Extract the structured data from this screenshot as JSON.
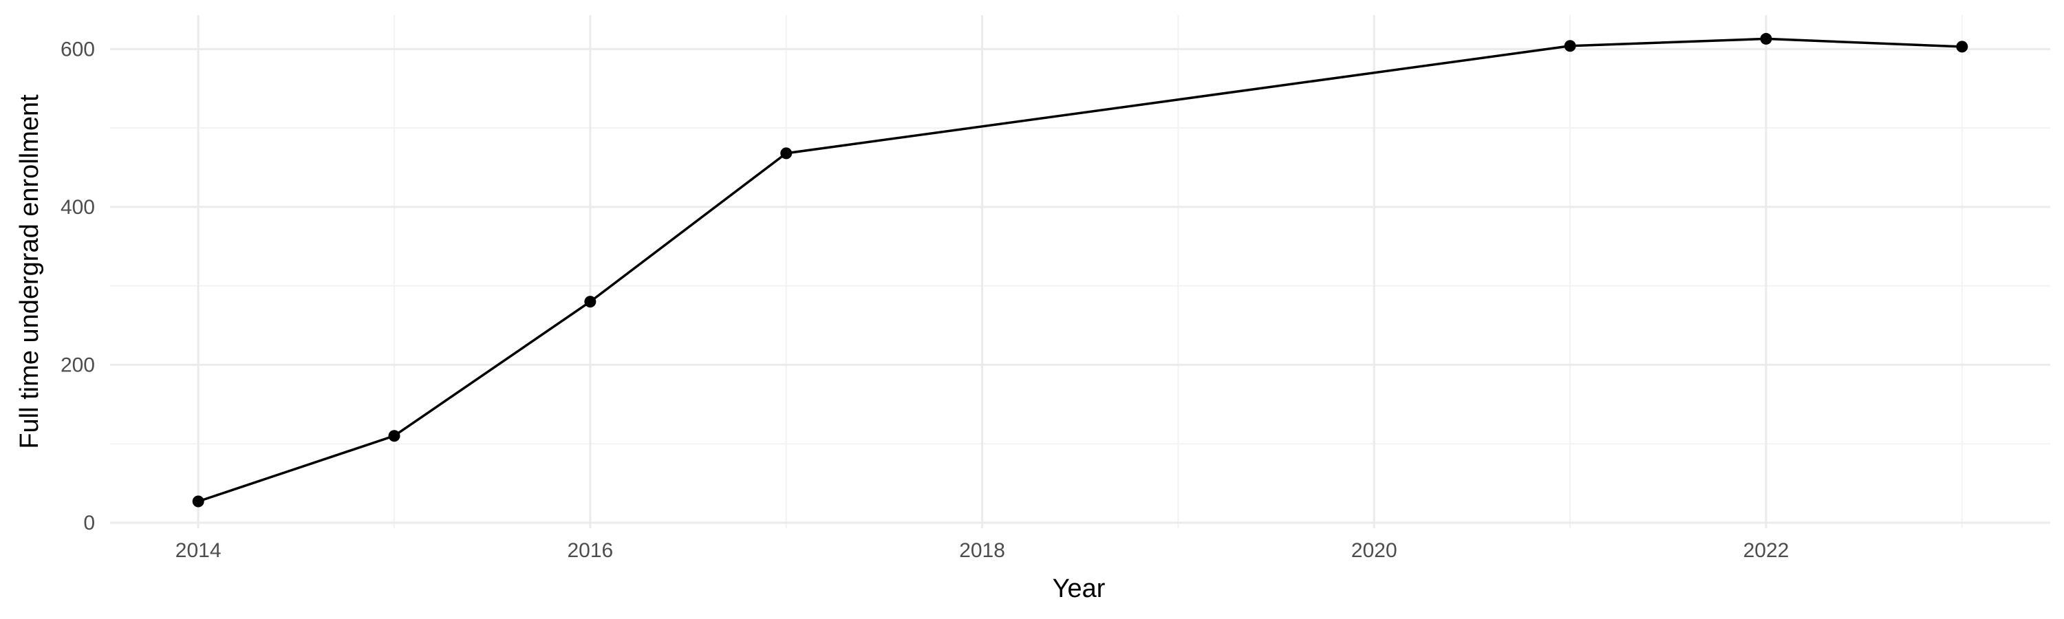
{
  "chart_data": {
    "type": "line",
    "title": "",
    "xlabel": "Year",
    "ylabel": "Full time undergrad enrollment",
    "x": [
      2014,
      2015,
      2016,
      2017,
      2021,
      2022,
      2023
    ],
    "series": [
      {
        "values": [
          27,
          110,
          280,
          468,
          604,
          613,
          603
        ]
      }
    ],
    "xlim": [
      2013.55,
      2023.45
    ],
    "ylim": [
      -7,
      643
    ],
    "x_ticks": [
      2014,
      2016,
      2018,
      2020,
      2022
    ],
    "x_tick_labels": [
      "2014",
      "2016",
      "2018",
      "2020",
      "2022"
    ],
    "y_ticks": [
      0,
      200,
      400,
      600
    ],
    "y_tick_labels": [
      "0",
      "200",
      "400",
      "600"
    ],
    "grid": true,
    "legend": "none",
    "colors": {
      "line": "#000000",
      "points": "#000000",
      "grid_major": "#ebebeb",
      "grid_minor": "#f3f3f3",
      "background": "#ffffff"
    }
  }
}
